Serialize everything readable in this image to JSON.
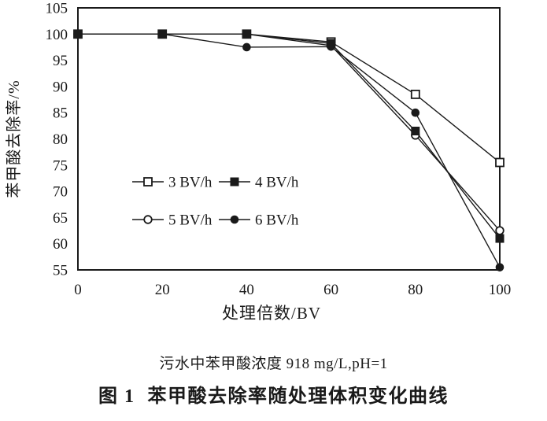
{
  "window": {
    "background": "#ffffff",
    "ink": "#1a1a1a"
  },
  "chart_data": {
    "type": "line",
    "title": "",
    "xlabel": "处理倍数/BV",
    "ylabel": "苯甲酸去除率/%",
    "xlim": [
      0,
      100
    ],
    "ylim": [
      55,
      105
    ],
    "x_ticks": [
      0,
      20,
      40,
      60,
      80,
      100
    ],
    "y_ticks": [
      55,
      60,
      65,
      70,
      75,
      80,
      85,
      90,
      95,
      100,
      105
    ],
    "grid": false,
    "legend_position": "inside-middle-left",
    "x": [
      0,
      20,
      40,
      60,
      80,
      100
    ],
    "series": [
      {
        "name": "3 BV/h",
        "marker": "open-square",
        "color": "#1a1a1a",
        "values": [
          100,
          100,
          100,
          98.5,
          88.5,
          75.5
        ]
      },
      {
        "name": "4 BV/h",
        "marker": "filled-square",
        "color": "#1a1a1a",
        "values": [
          100,
          100,
          100,
          98.2,
          81.5,
          61
        ]
      },
      {
        "name": "5 BV/h",
        "marker": "open-circle",
        "color": "#1a1a1a",
        "values": [
          100,
          100,
          100,
          97.8,
          80.7,
          62.5
        ]
      },
      {
        "name": "6 BV/h",
        "marker": "filled-circle",
        "color": "#1a1a1a",
        "values": [
          100,
          100,
          97.5,
          97.6,
          85,
          55.5
        ]
      }
    ],
    "draw_order": [
      0,
      2,
      1,
      3
    ],
    "legend_rows": [
      [
        "3 BV/h",
        "4 BV/h"
      ],
      [
        "5 BV/h",
        "6 BV/h"
      ]
    ]
  },
  "caption": {
    "condition_line": "污水中苯甲酸浓度 918 mg/L,pH=1",
    "figure_label": "图 1",
    "figure_title": "苯甲酸去除率随处理体积变化曲线"
  }
}
